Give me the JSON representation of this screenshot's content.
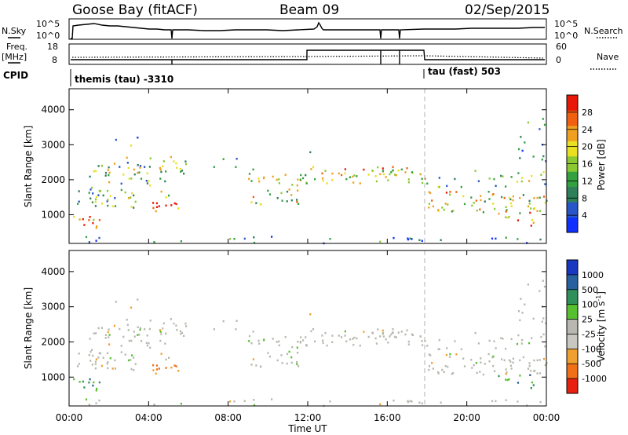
{
  "header": {
    "station": "Goose Bay (fitACF)",
    "beam": "Beam 09",
    "date": "02/Sep/2015"
  },
  "status_panel": {
    "nsky_label": "N.Sky",
    "nsky_ticks": [
      "10^5",
      "10^0"
    ],
    "nsearch_label": "N.Search",
    "nsearch_ticks": [
      "10^5",
      "10^0"
    ],
    "freq_label": "Freq.",
    "freq_unit": "[MHz]",
    "freq_ticks": [
      "18",
      "8"
    ],
    "nave_label": "Nave",
    "nave_ticks": [
      "60",
      "0"
    ],
    "cpid_label": "CPID",
    "cpid_segments": [
      {
        "label": "themis (tau) -3310",
        "start_hour": 0,
        "end_hour": 18
      },
      {
        "label": "tau (fast) 503",
        "start_hour": 18,
        "end_hour": 24
      }
    ]
  },
  "time_axis": {
    "label": "Time UT",
    "tick_labels": [
      "00:00",
      "04:00",
      "08:00",
      "12:00",
      "16:00",
      "20:00",
      "00:00"
    ],
    "tick_hours": [
      0,
      4,
      8,
      12,
      16,
      20,
      24
    ]
  },
  "chart_data": [
    {
      "type": "heatmap",
      "title": "",
      "quantity": "Power",
      "xlabel": "Time UT",
      "ylabel": "Slant Range [km]",
      "xlim_hours": [
        0,
        24
      ],
      "ylim_km": [
        180,
        4600
      ],
      "y_tick_labels": [
        "1000",
        "2000",
        "3000",
        "4000"
      ],
      "y_tick_values": [
        1000,
        2000,
        3000,
        4000
      ],
      "colorbar_label": "Power [dB]",
      "colorbar_ticks": [
        "4",
        "8",
        "12",
        "16",
        "20",
        "24",
        "28"
      ],
      "colorbar_colors": [
        "#1030ff",
        "#2a55c8",
        "#2e7f5a",
        "#35a040",
        "#8cc832",
        "#e8e020",
        "#f0a020",
        "#f06010",
        "#e81808"
      ],
      "colorbar_range_db": [
        0,
        30
      ]
    },
    {
      "type": "heatmap",
      "title": "",
      "quantity": "Velocity",
      "xlabel": "Time UT",
      "ylabel": "Slant Range [km]",
      "xlim_hours": [
        0,
        24
      ],
      "ylim_km": [
        180,
        4600
      ],
      "y_tick_labels": [
        "1000",
        "2000",
        "3000",
        "4000"
      ],
      "y_tick_values": [
        1000,
        2000,
        3000,
        4000
      ],
      "colorbar_label": "Velocity",
      "colorbar_unit": "[m s",
      "colorbar_unit_exp": "-1",
      "colorbar_unit_close": "]",
      "colorbar_ticks": [
        "1000",
        "500",
        "100",
        "25",
        "-25",
        "-100",
        "-500",
        "-1000"
      ],
      "colorbar_colors": [
        "#1838c0",
        "#2860a0",
        "#30905a",
        "#58c030",
        "#b8b8b0",
        "#c8c8c0",
        "#f0a030",
        "#f07018",
        "#e82010"
      ]
    }
  ]
}
